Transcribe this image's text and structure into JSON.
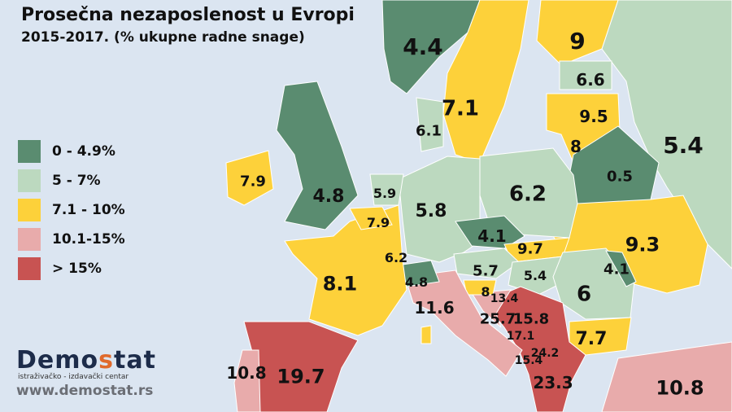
{
  "title": "Prosečna nezaposlenost u Evropi",
  "subtitle": "2015-2017. (% ukupne radne snage)",
  "colors": {
    "background": "#dbe5f1",
    "dark_green": "#5a8c70",
    "light_green": "#bcd9bf",
    "yellow": "#fdd13a",
    "pink": "#e8abab",
    "red": "#c85352"
  },
  "legend": [
    {
      "label": "0 - 4.9%",
      "color": "#5a8c70"
    },
    {
      "label": "5 - 7%",
      "color": "#bcd9bf"
    },
    {
      "label": "7.1 - 10%",
      "color": "#fdd13a"
    },
    {
      "label": "10.1-15%",
      "color": "#e8abab"
    },
    {
      "label": "> 15%",
      "color": "#c85352"
    }
  ],
  "values": [
    "4.4",
    "9",
    "7.1",
    "6.6",
    "9.5",
    "8",
    "6.1",
    "5.4",
    "0.5",
    "7.9",
    "4.8",
    "5.9",
    "5.8",
    "6.2",
    "7.9",
    "4.1",
    "9.3",
    "6.2",
    "9.7",
    "4.1",
    "5.7",
    "5.4",
    "8.1",
    "4.8",
    "6",
    "11.6",
    "8",
    "13.4",
    "25.7",
    "15.8",
    "17.1",
    "7.7",
    "24.2",
    "15.4",
    "10.8",
    "19.7",
    "23.3",
    "10.8"
  ],
  "logo": {
    "name_pre": "Demo",
    "name_s": "s",
    "name_post": "tat",
    "tagline": "istraživačko - izdavački  centar",
    "url": "www.demostat.rs"
  }
}
